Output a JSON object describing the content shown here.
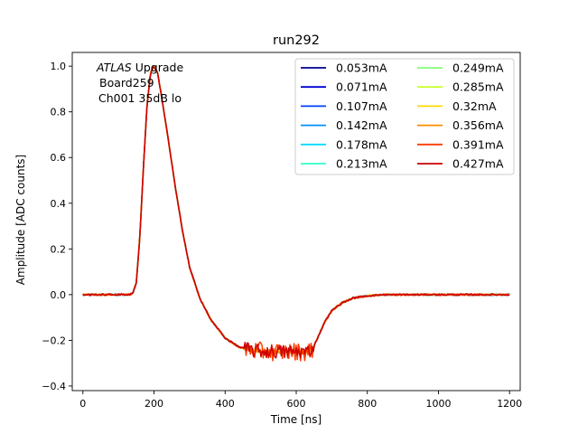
{
  "chart_data": {
    "type": "line",
    "title": "run292",
    "xlabel": "Time [ns]",
    "ylabel": "Amplitude [ADC counts]",
    "xlim": [
      -30,
      1230
    ],
    "ylim": [
      -0.42,
      1.06
    ],
    "xticks": [
      0,
      200,
      400,
      600,
      800,
      1000,
      1200
    ],
    "yticks": [
      -0.4,
      -0.2,
      0.0,
      0.2,
      0.4,
      0.6,
      0.8,
      1.0
    ],
    "xtick_labels": [
      "0",
      "200",
      "400",
      "600",
      "800",
      "1000",
      "1200"
    ],
    "ytick_labels": [
      "−0.4",
      "−0.2",
      "0.0",
      "0.2",
      "0.4",
      "0.6",
      "0.8",
      "1.0"
    ],
    "grid": false,
    "legend_position": "top-right",
    "legend_columns": 2,
    "annotation": {
      "atlas": "ATLAS",
      "line1_rest": " Upgrade",
      "line2": "Board259",
      "line3": "Ch001 35dB lo"
    },
    "pulse_shape": {
      "x": [
        0,
        130,
        140,
        150,
        160,
        170,
        180,
        190,
        200,
        210,
        220,
        240,
        260,
        280,
        300,
        330,
        360,
        400,
        440,
        480,
        520,
        560,
        600,
        630,
        645,
        660,
        680,
        700,
        730,
        760,
        800,
        850,
        900,
        1000,
        1200
      ],
      "y": [
        0.0,
        0.0,
        0.005,
        0.05,
        0.25,
        0.55,
        0.82,
        0.97,
        1.0,
        0.97,
        0.88,
        0.68,
        0.47,
        0.28,
        0.12,
        -0.02,
        -0.11,
        -0.19,
        -0.23,
        -0.245,
        -0.25,
        -0.25,
        -0.25,
        -0.25,
        -0.24,
        -0.19,
        -0.12,
        -0.07,
        -0.035,
        -0.015,
        -0.005,
        0.0,
        0.0,
        0.0,
        0.0
      ]
    },
    "series": [
      {
        "name": "0.053mA",
        "color": "#00008f",
        "noise": 0.003,
        "flat_noise": 0.004
      },
      {
        "name": "0.071mA",
        "color": "#0000d8",
        "noise": 0.003,
        "flat_noise": 0.004
      },
      {
        "name": "0.107mA",
        "color": "#0040ff",
        "noise": 0.003,
        "flat_noise": 0.005
      },
      {
        "name": "0.142mA",
        "color": "#0090ff",
        "noise": 0.003,
        "flat_noise": 0.005
      },
      {
        "name": "0.178mA",
        "color": "#00dcff",
        "noise": 0.003,
        "flat_noise": 0.006
      },
      {
        "name": "0.213mA",
        "color": "#2fffc8",
        "noise": 0.003,
        "flat_noise": 0.006
      },
      {
        "name": "0.249mA",
        "color": "#80ff77",
        "noise": 0.003,
        "flat_noise": 0.006
      },
      {
        "name": "0.285mA",
        "color": "#c8ff2f",
        "noise": 0.003,
        "flat_noise": 0.007
      },
      {
        "name": "0.32mA",
        "color": "#ffd800",
        "noise": 0.003,
        "flat_noise": 0.008
      },
      {
        "name": "0.356mA",
        "color": "#ff8c00",
        "noise": 0.003,
        "flat_noise": 0.01
      },
      {
        "name": "0.391mA",
        "color": "#ff3c00",
        "noise": 0.004,
        "flat_noise": 0.04
      },
      {
        "name": "0.427mA",
        "color": "#cc0000",
        "noise": 0.004,
        "flat_noise": 0.03
      }
    ]
  }
}
